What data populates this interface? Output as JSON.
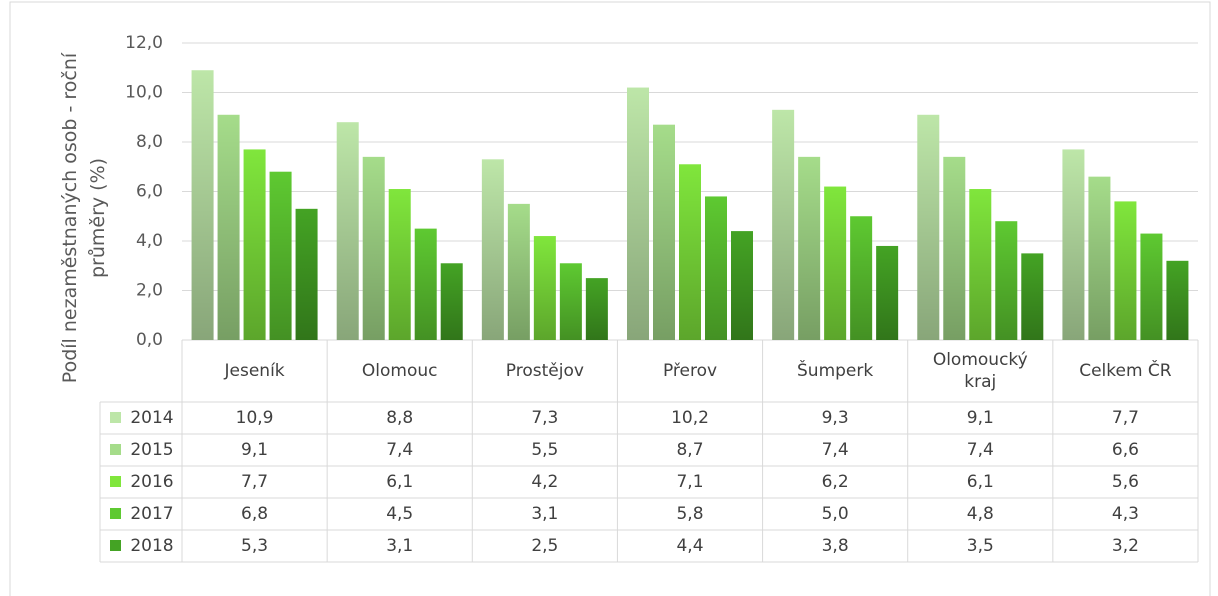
{
  "chart_data": {
    "type": "bar",
    "y_label": "Podíl nezaměstnaných osob - roční průměry (%)",
    "categories": [
      "Jeseník",
      "Olomouc",
      "Prostějov",
      "Přerov",
      "Šumperk",
      "Olomoucký kraj",
      "Celkem ČR"
    ],
    "series": [
      {
        "name": "2014",
        "color": "#bde6a8",
        "values": [
          10.9,
          8.8,
          7.3,
          10.2,
          9.3,
          9.1,
          7.7
        ],
        "value_labels": [
          "10,9",
          "8,8",
          "7,3",
          "10,2",
          "9,3",
          "9,1",
          "7,7"
        ]
      },
      {
        "name": "2015",
        "color": "#a5dc8a",
        "values": [
          9.1,
          7.4,
          5.5,
          8.7,
          7.4,
          7.4,
          6.6
        ],
        "value_labels": [
          "9,1",
          "7,4",
          "5,5",
          "8,7",
          "7,4",
          "7,4",
          "6,6"
        ]
      },
      {
        "name": "2016",
        "color": "#80e63c",
        "values": [
          7.7,
          6.1,
          4.2,
          7.1,
          6.2,
          6.1,
          5.6
        ],
        "value_labels": [
          "7,7",
          "6,1",
          "4,2",
          "7,1",
          "6,2",
          "6,1",
          "5,6"
        ]
      },
      {
        "name": "2017",
        "color": "#5ec931",
        "values": [
          6.8,
          4.5,
          3.1,
          5.8,
          5.0,
          4.8,
          4.3
        ],
        "value_labels": [
          "6,8",
          "4,5",
          "3,1",
          "5,8",
          "5,0",
          "4,8",
          "4,3"
        ]
      },
      {
        "name": "2018",
        "color": "#44a324",
        "values": [
          5.3,
          3.1,
          2.5,
          4.4,
          3.8,
          3.5,
          3.2
        ],
        "value_labels": [
          "5,3",
          "3,1",
          "2,5",
          "4,4",
          "3,8",
          "3,5",
          "3,2"
        ]
      }
    ],
    "ylim": [
      0,
      12
    ],
    "yticks": [
      {
        "value": 0,
        "label": "0,0"
      },
      {
        "value": 2,
        "label": "2,0"
      },
      {
        "value": 4,
        "label": "4,0"
      },
      {
        "value": 6,
        "label": "6,0"
      },
      {
        "value": 8,
        "label": "8,0"
      },
      {
        "value": 10,
        "label": "10,0"
      },
      {
        "value": 12,
        "label": "12,0"
      }
    ],
    "grid": true,
    "legend": "table"
  }
}
